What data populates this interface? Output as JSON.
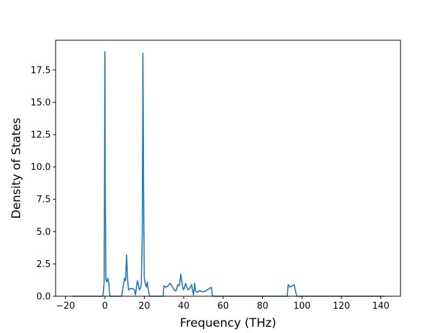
{
  "chart_data": {
    "type": "line",
    "title": "",
    "xlabel": "Frequency (THz)",
    "ylabel": "Density of States",
    "xlim": [
      -25,
      150
    ],
    "ylim": [
      0,
      19.8
    ],
    "xticks": [
      -20,
      0,
      20,
      40,
      60,
      80,
      100,
      120,
      140
    ],
    "xtick_labels": [
      "−20",
      "0",
      "20",
      "40",
      "60",
      "80",
      "100",
      "120",
      "140"
    ],
    "yticks": [
      0,
      2.5,
      5,
      7.5,
      10,
      12.5,
      15,
      17.5
    ],
    "ytick_labels": [
      "0.0",
      "2.5",
      "5.0",
      "7.5",
      "10.0",
      "12.5",
      "15.0",
      "17.5"
    ],
    "grid": false,
    "series": [
      {
        "color": "#1f77b4",
        "x": [
          -16.5,
          -1,
          -0.4,
          -0.2,
          0,
          0.2,
          0.5,
          1,
          1.5,
          2,
          2.5,
          3,
          8.5,
          9,
          10,
          10.5,
          11,
          11.5,
          12,
          13,
          14,
          15,
          15.5,
          16.5,
          17.5,
          18,
          18.5,
          19,
          19.3,
          19.6,
          20,
          20.5,
          21,
          21.5,
          22,
          22.7,
          29.5,
          30,
          31,
          32,
          33,
          34,
          35,
          36,
          37,
          37.5,
          38,
          38.5,
          39,
          39.5,
          40,
          41,
          42,
          43,
          44,
          44.5,
          45,
          45.5,
          46,
          47,
          48,
          49,
          50,
          51,
          52,
          53,
          54,
          54.5,
          55,
          92.5,
          93,
          94,
          95,
          96,
          97,
          97.5,
          142
        ],
        "y": [
          0,
          0,
          1.0,
          8.0,
          18.9,
          8.0,
          1.3,
          1.1,
          1.4,
          1.0,
          0,
          0,
          0,
          0.5,
          1.4,
          1.2,
          3.2,
          1.3,
          0.5,
          0.6,
          0.6,
          0.5,
          0.1,
          1.2,
          0.5,
          0.6,
          1.0,
          5.0,
          18.8,
          9.0,
          1.4,
          1.0,
          0.7,
          1.1,
          0.5,
          0,
          0,
          0.8,
          0.7,
          0.8,
          1.0,
          0.8,
          0.5,
          0.4,
          0.9,
          0.8,
          1.0,
          1.7,
          1.2,
          0.6,
          0.5,
          1.0,
          0.5,
          0.6,
          0.9,
          0.4,
          0.1,
          1.0,
          0.4,
          0.3,
          0.45,
          0.35,
          0.35,
          0.4,
          0.5,
          0.6,
          0.7,
          0.1,
          0,
          0,
          0.9,
          0.7,
          0.8,
          0.9,
          0.2,
          0,
          0
        ]
      }
    ]
  }
}
